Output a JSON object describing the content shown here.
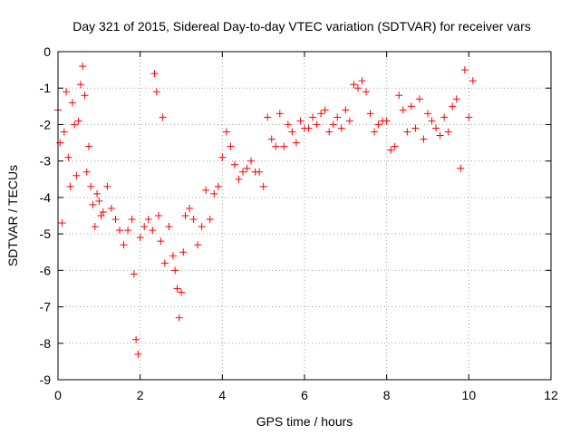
{
  "chart_data": {
    "type": "scatter",
    "title": "Day 321 of 2015, Sidereal Day-to-day VTEC variation (SDTVAR) for receiver vars",
    "xlabel": "GPS time / hours",
    "ylabel": "SDTVAR / TECUs",
    "xlim": [
      0,
      12
    ],
    "ylim": [
      -9,
      0
    ],
    "xticks": [
      0,
      2,
      4,
      6,
      8,
      10,
      12
    ],
    "yticks": [
      0,
      -1,
      -2,
      -3,
      -4,
      -5,
      -6,
      -7,
      -8,
      -9
    ],
    "xtick_labels": [
      "0",
      "2",
      "4",
      "6",
      "8",
      "10",
      "12"
    ],
    "ytick_labels": [
      "0",
      "-1",
      "-2",
      "-3",
      "-4",
      "-5",
      "-6",
      "-7",
      "-8",
      "-9"
    ],
    "grid": true,
    "marker": "+",
    "series": [
      {
        "name": "vars",
        "color": "#ff0000",
        "x": [
          0.0,
          0.05,
          0.1,
          0.15,
          0.2,
          0.25,
          0.3,
          0.35,
          0.4,
          0.45,
          0.5,
          0.55,
          0.6,
          0.65,
          0.7,
          0.75,
          0.8,
          0.85,
          0.9,
          0.95,
          1.0,
          1.05,
          1.1,
          1.2,
          1.3,
          1.4,
          1.5,
          1.6,
          1.7,
          1.8,
          1.85,
          1.9,
          1.95,
          2.0,
          2.1,
          2.2,
          2.3,
          2.35,
          2.4,
          2.45,
          2.5,
          2.55,
          2.6,
          2.7,
          2.8,
          2.85,
          2.9,
          2.95,
          3.0,
          3.05,
          3.1,
          3.2,
          3.3,
          3.4,
          3.5,
          3.6,
          3.7,
          3.8,
          3.9,
          4.0,
          4.1,
          4.2,
          4.3,
          4.4,
          4.5,
          4.6,
          4.7,
          4.8,
          4.9,
          5.0,
          5.1,
          5.2,
          5.3,
          5.4,
          5.5,
          5.6,
          5.7,
          5.8,
          5.9,
          6.0,
          6.1,
          6.2,
          6.3,
          6.4,
          6.5,
          6.6,
          6.7,
          6.8,
          6.9,
          7.0,
          7.1,
          7.2,
          7.3,
          7.4,
          7.5,
          7.6,
          7.7,
          7.8,
          7.9,
          8.0,
          8.1,
          8.2,
          8.3,
          8.4,
          8.5,
          8.6,
          8.7,
          8.8,
          8.9,
          9.0,
          9.1,
          9.2,
          9.3,
          9.4,
          9.5,
          9.6,
          9.7,
          9.8,
          9.9,
          10.0,
          10.1
        ],
        "y": [
          -1.6,
          -2.5,
          -4.7,
          -2.2,
          -1.1,
          -2.9,
          -3.7,
          -1.4,
          -2.0,
          -3.4,
          -1.9,
          -0.9,
          -0.4,
          -1.2,
          -3.3,
          -2.6,
          -3.7,
          -4.2,
          -4.8,
          -3.9,
          -4.1,
          -4.5,
          -4.4,
          -3.7,
          -4.3,
          -4.6,
          -4.9,
          -5.3,
          -4.9,
          -4.6,
          -6.1,
          -7.9,
          -8.3,
          -5.1,
          -4.8,
          -4.6,
          -4.9,
          -0.6,
          -1.1,
          -4.5,
          -5.2,
          -1.8,
          -5.8,
          -4.8,
          -5.6,
          -6.0,
          -6.5,
          -7.3,
          -6.6,
          -5.5,
          -4.5,
          -4.3,
          -4.6,
          -5.3,
          -4.8,
          -3.8,
          -4.6,
          -3.9,
          -3.7,
          -2.9,
          -2.2,
          -2.6,
          -3.1,
          -3.5,
          -3.3,
          -3.2,
          -3.0,
          -3.3,
          -3.3,
          -3.7,
          -1.8,
          -2.4,
          -2.6,
          -1.7,
          -2.6,
          -2.0,
          -2.2,
          -2.5,
          -1.9,
          -2.1,
          -2.1,
          -1.8,
          -2.0,
          -1.7,
          -1.6,
          -2.2,
          -2.0,
          -1.8,
          -2.1,
          -1.6,
          -1.9,
          -0.9,
          -1.0,
          -0.8,
          -1.1,
          -1.7,
          -2.2,
          -2.0,
          -1.9,
          -1.9,
          -2.7,
          -2.6,
          -1.2,
          -1.6,
          -2.2,
          -1.5,
          -2.1,
          -1.3,
          -2.4,
          -1.7,
          -1.9,
          -2.1,
          -2.3,
          -1.8,
          -2.2,
          -1.5,
          -1.3,
          -3.2,
          -0.5,
          -1.8,
          -0.8
        ]
      }
    ]
  }
}
